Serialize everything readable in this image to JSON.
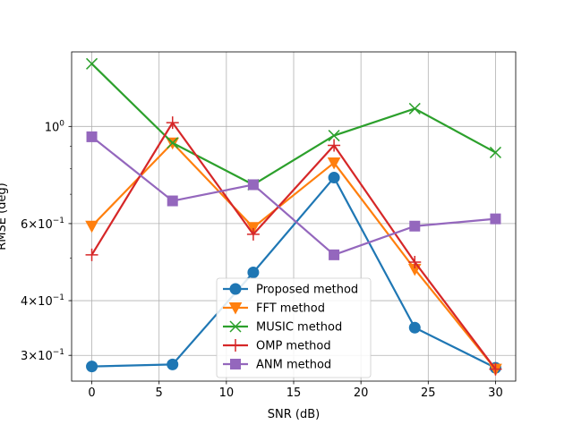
{
  "chart_data": {
    "type": "line",
    "title": "",
    "xlabel": "SNR (dB)",
    "ylabel": "RMSE (deg)",
    "x": [
      0,
      6,
      12,
      18,
      24,
      30
    ],
    "xlim": [
      -1.5,
      31.5
    ],
    "ylim": [
      0.262,
      1.48
    ],
    "yscale": "log",
    "grid": true,
    "legend_position": "lower center",
    "xticks": [
      0,
      5,
      10,
      15,
      20,
      25,
      30
    ],
    "xtick_labels": [
      "0",
      "5",
      "10",
      "15",
      "20",
      "25",
      "30"
    ],
    "yticks": [
      {
        "value": 0.3,
        "base": "3",
        "mult": "×",
        "exp_base": "10",
        "exp": "−1"
      },
      {
        "value": 0.4,
        "base": "4",
        "mult": "×",
        "exp_base": "10",
        "exp": "−1"
      },
      {
        "value": 0.6,
        "base": "6",
        "mult": "×",
        "exp_base": "10",
        "exp": "−1"
      },
      {
        "value": 1.0,
        "base": "",
        "mult": "",
        "exp_base": "10",
        "exp": "0"
      }
    ],
    "series": [
      {
        "name": "Proposed method",
        "color": "#1f77b4",
        "marker": "circle",
        "values": [
          0.283,
          0.286,
          0.464,
          0.764,
          0.347,
          0.281
        ]
      },
      {
        "name": "FFT method",
        "color": "#ff7f0e",
        "marker": "triangle-down",
        "values": [
          0.592,
          0.917,
          0.588,
          0.826,
          0.472,
          0.279
        ]
      },
      {
        "name": "MUSIC method",
        "color": "#2ca02c",
        "marker": "x",
        "values": [
          1.39,
          0.917,
          0.736,
          0.953,
          1.098,
          0.872
        ]
      },
      {
        "name": "OMP method",
        "color": "#d62728",
        "marker": "plus",
        "values": [
          0.509,
          1.02,
          0.567,
          0.905,
          0.49,
          0.279
        ]
      },
      {
        "name": "ANM method",
        "color": "#9467bd",
        "marker": "square",
        "values": [
          0.947,
          0.676,
          0.736,
          0.509,
          0.592,
          0.615
        ]
      }
    ]
  }
}
